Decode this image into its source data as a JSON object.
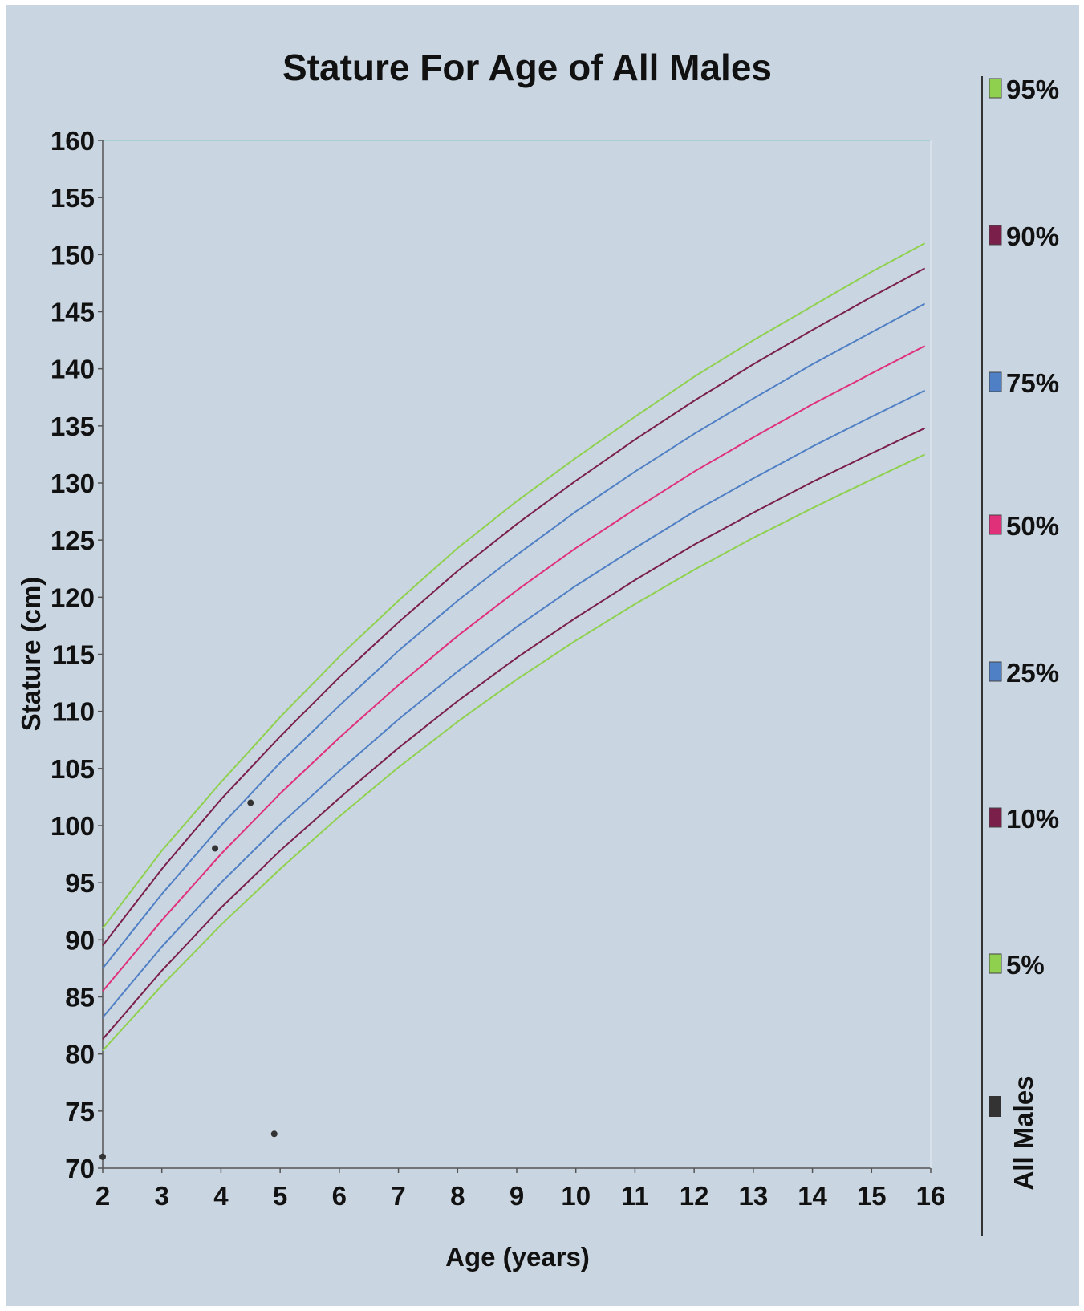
{
  "chart_data": {
    "type": "line",
    "title": "Stature For Age of All Males",
    "xlabel": "Age (years)",
    "ylabel": "Stature  (cm)",
    "xlim": [
      2,
      16
    ],
    "ylim": [
      70,
      160
    ],
    "x_ticks": [
      "2",
      "3",
      "4",
      "5",
      "6",
      "7",
      "8",
      "9",
      "10",
      "11",
      "12",
      "13",
      "14",
      "15",
      "16"
    ],
    "y_ticks": [
      "70",
      "75",
      "80",
      "85",
      "90",
      "95",
      "100",
      "105",
      "110",
      "115",
      "120",
      "125",
      "130",
      "135",
      "140",
      "145",
      "150",
      "155",
      "160"
    ],
    "grid": false,
    "legend": {
      "placement": "right",
      "title": "All Males"
    },
    "x": [
      2,
      3,
      4,
      5,
      6,
      7,
      8,
      9,
      10,
      11,
      12,
      13,
      14,
      15,
      15.9
    ],
    "series": [
      {
        "name": "95%",
        "color": "#8fd14f",
        "values": [
          91.0,
          97.8,
          103.8,
          109.5,
          114.8,
          119.7,
          124.3,
          128.4,
          132.2,
          135.8,
          139.3,
          142.5,
          145.5,
          148.5,
          151.0
        ]
      },
      {
        "name": "90%",
        "color": "#7a1f4a",
        "values": [
          89.5,
          96.2,
          102.3,
          107.8,
          113.0,
          117.8,
          122.3,
          126.4,
          130.2,
          133.8,
          137.2,
          140.4,
          143.4,
          146.3,
          148.8
        ]
      },
      {
        "name": "75%",
        "color": "#4f7fc4",
        "values": [
          87.5,
          94.0,
          100.0,
          105.5,
          110.5,
          115.3,
          119.7,
          123.7,
          127.5,
          131.0,
          134.3,
          137.4,
          140.4,
          143.2,
          145.7
        ]
      },
      {
        "name": "50%",
        "color": "#e0307a",
        "values": [
          85.5,
          91.7,
          97.5,
          102.8,
          107.7,
          112.3,
          116.6,
          120.6,
          124.3,
          127.7,
          131.0,
          134.0,
          136.9,
          139.6,
          142.0
        ]
      },
      {
        "name": "25%",
        "color": "#4f7fc4",
        "values": [
          83.2,
          89.4,
          95.0,
          100.1,
          104.8,
          109.3,
          113.5,
          117.4,
          121.0,
          124.3,
          127.5,
          130.4,
          133.2,
          135.8,
          138.1
        ]
      },
      {
        "name": "10%",
        "color": "#7a1f4a",
        "values": [
          81.3,
          87.3,
          92.8,
          97.8,
          102.4,
          106.8,
          110.9,
          114.7,
          118.2,
          121.5,
          124.6,
          127.4,
          130.1,
          132.6,
          134.8
        ]
      },
      {
        "name": "5%",
        "color": "#8fd14f",
        "values": [
          80.3,
          86.0,
          91.3,
          96.2,
          100.8,
          105.1,
          109.1,
          112.8,
          116.2,
          119.4,
          122.4,
          125.2,
          127.8,
          130.3,
          132.5
        ]
      }
    ],
    "points": [
      {
        "x": 2.0,
        "y": 71.0
      },
      {
        "x": 3.9,
        "y": 98.0
      },
      {
        "x": 4.5,
        "y": 102.0
      },
      {
        "x": 4.9,
        "y": 73.0
      }
    ],
    "points_series": {
      "name": "All Males",
      "color": "#333333"
    }
  }
}
